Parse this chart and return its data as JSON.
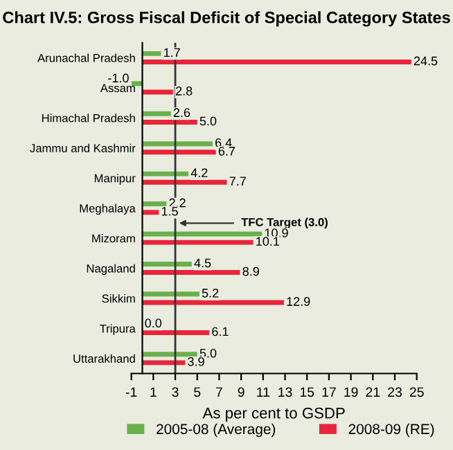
{
  "chart_data": {
    "type": "bar",
    "orientation": "horizontal",
    "title": "Chart IV.5: Gross Fiscal Deficit of Special Category States",
    "xlabel": "As per cent to GSDP",
    "categories": [
      "Arunachal Pradesh",
      "Assam",
      "Himachal Pradesh",
      "Jammu and Kashmir",
      "Manipur",
      "Meghalaya",
      "Mizoram",
      "Nagaland",
      "Sikkim",
      "Tripura",
      "Uttarakhand"
    ],
    "series": [
      {
        "name": "2005-08 (Average)",
        "color": "#6ab04c",
        "values": [
          1.7,
          -1.0,
          2.6,
          6.4,
          4.2,
          2.2,
          10.9,
          4.5,
          5.2,
          0.0,
          5.0
        ],
        "value_labels": [
          "1.7",
          "-1.0",
          "2.6",
          "6.4",
          "4.2",
          "2.2",
          "10.9",
          "4.5",
          "5.2",
          "0.0",
          "5.0"
        ]
      },
      {
        "name": "2008-09 (RE)",
        "color": "#e8253a",
        "values": [
          24.5,
          2.8,
          5.0,
          6.7,
          7.7,
          1.5,
          10.1,
          8.9,
          12.9,
          6.1,
          3.9
        ],
        "value_labels": [
          "24.5",
          "2.8",
          "5.0",
          "6.7",
          "7.7",
          "1.5",
          "10.1",
          "8.9",
          "12.9",
          "6.1",
          "3.9"
        ]
      }
    ],
    "xlim": [
      -1,
      25
    ],
    "xticks": [
      -1,
      1,
      3,
      5,
      7,
      9,
      11,
      13,
      15,
      17,
      19,
      21,
      23,
      25
    ],
    "ref_lines": [
      {
        "axis": "x",
        "value": 3,
        "label": "TFC Target (3.0)",
        "color": "#333333"
      }
    ],
    "grid": false,
    "legend": "bottom"
  }
}
